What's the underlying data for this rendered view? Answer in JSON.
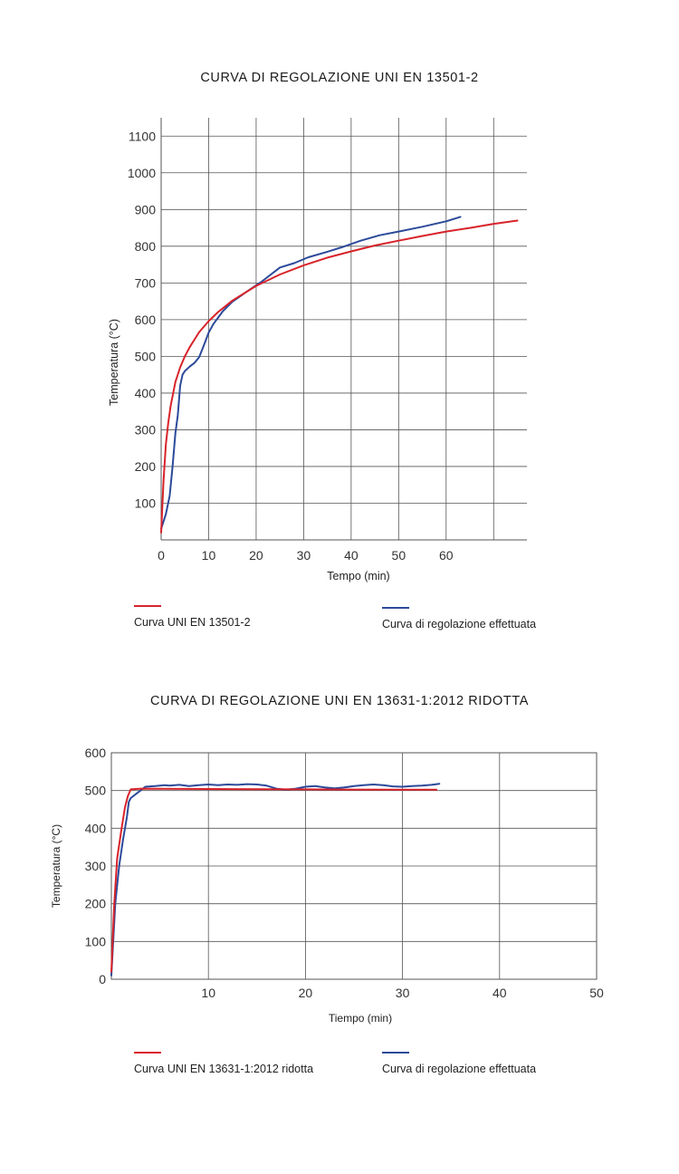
{
  "chart_data": [
    {
      "type": "line",
      "title": "CURVA DI REGOLAZIONE UNI EN 13501-2",
      "xlabel": "Tempo (min)",
      "ylabel": "Temperatura (°C)",
      "xlim": [
        0,
        77
      ],
      "ylim": [
        0,
        1150
      ],
      "x_ticks": [
        0,
        10,
        20,
        30,
        40,
        50,
        60
      ],
      "x_tick_labels": [
        "0",
        "10",
        "20",
        "30",
        "40",
        "50",
        "60"
      ],
      "y_ticks": [
        100,
        200,
        300,
        400,
        500,
        600,
        700,
        800,
        900,
        1000,
        1100
      ],
      "y_tick_labels": [
        "100",
        "200",
        "300",
        "400",
        "500",
        "600",
        "700",
        "800",
        "900",
        "1000",
        "1100"
      ],
      "grid": true,
      "legend_position": "bottom",
      "series": [
        {
          "name": "Curva UNI EN 13501-2",
          "color": "#d8232a",
          "x": [
            0,
            0.5,
            1,
            1.5,
            2,
            3,
            4,
            5,
            6,
            8,
            10,
            12,
            15,
            20,
            25,
            30,
            35,
            40,
            45,
            50,
            55,
            60,
            65,
            70,
            75
          ],
          "y": [
            20,
            160,
            260,
            320,
            365,
            430,
            470,
            500,
            525,
            566,
            596,
            621,
            652,
            692,
            723,
            748,
            769,
            786,
            802,
            815,
            828,
            840,
            850,
            861,
            870
          ]
        },
        {
          "name": "Curva di regolazione effettuata",
          "color": "#2c4a9a",
          "x": [
            0,
            1,
            1.8,
            2.4,
            3,
            3.5,
            4,
            4.5,
            5,
            6,
            7,
            8,
            9,
            10,
            11,
            13,
            15,
            18,
            21,
            25,
            28,
            31,
            35,
            38,
            42,
            46,
            50,
            55,
            60,
            63
          ],
          "y": [
            30,
            70,
            120,
            200,
            290,
            340,
            420,
            450,
            460,
            472,
            482,
            498,
            530,
            565,
            588,
            623,
            649,
            676,
            702,
            742,
            754,
            770,
            785,
            797,
            815,
            830,
            840,
            853,
            868,
            880
          ]
        }
      ]
    },
    {
      "type": "line",
      "title": "CURVA DI REGOLAZIONE UNI EN 13631-1:2012 RIDOTTA",
      "xlabel": "Tiempo (min)",
      "ylabel": "Temperatura (°C)",
      "xlim": [
        0,
        50
      ],
      "ylim": [
        0,
        600
      ],
      "x_ticks": [
        10,
        20,
        30,
        40,
        50
      ],
      "x_tick_labels": [
        "10",
        "20",
        "30",
        "40",
        "50"
      ],
      "y_ticks": [
        0,
        100,
        200,
        300,
        400,
        500,
        600
      ],
      "y_tick_labels": [
        "0",
        "100",
        "200",
        "300",
        "400",
        "500",
        "600"
      ],
      "grid": true,
      "legend_position": "bottom",
      "series": [
        {
          "name": "Curva UNI EN 13631-1:2012 ridotta",
          "color": "#d8232a",
          "x": [
            0,
            0.3,
            0.6,
            1,
            1.4,
            1.7,
            2,
            3,
            10,
            20,
            30,
            33.5
          ],
          "y": [
            20,
            200,
            320,
            390,
            455,
            485,
            503,
            505,
            504,
            503,
            502,
            502
          ]
        },
        {
          "name": "Curva di regolazione effettuata",
          "color": "#2c4a9a",
          "x": [
            0,
            0.4,
            0.8,
            1.2,
            1.6,
            1.8,
            2,
            2.5,
            3,
            3.5,
            4.5,
            5.5,
            6,
            7,
            8,
            9,
            10,
            11,
            12,
            13,
            14,
            15,
            16,
            17,
            18,
            19,
            20,
            21,
            22,
            23,
            24,
            25,
            26,
            27,
            28,
            29,
            30,
            31,
            32,
            33,
            33.8
          ],
          "y": [
            10,
            200,
            300,
            370,
            430,
            470,
            480,
            490,
            500,
            510,
            512,
            514,
            513,
            515,
            512,
            514,
            516,
            514,
            516,
            515,
            517,
            516,
            513,
            505,
            502,
            505,
            510,
            512,
            508,
            506,
            508,
            512,
            514,
            516,
            514,
            511,
            510,
            512,
            513,
            515,
            518
          ]
        }
      ]
    }
  ]
}
